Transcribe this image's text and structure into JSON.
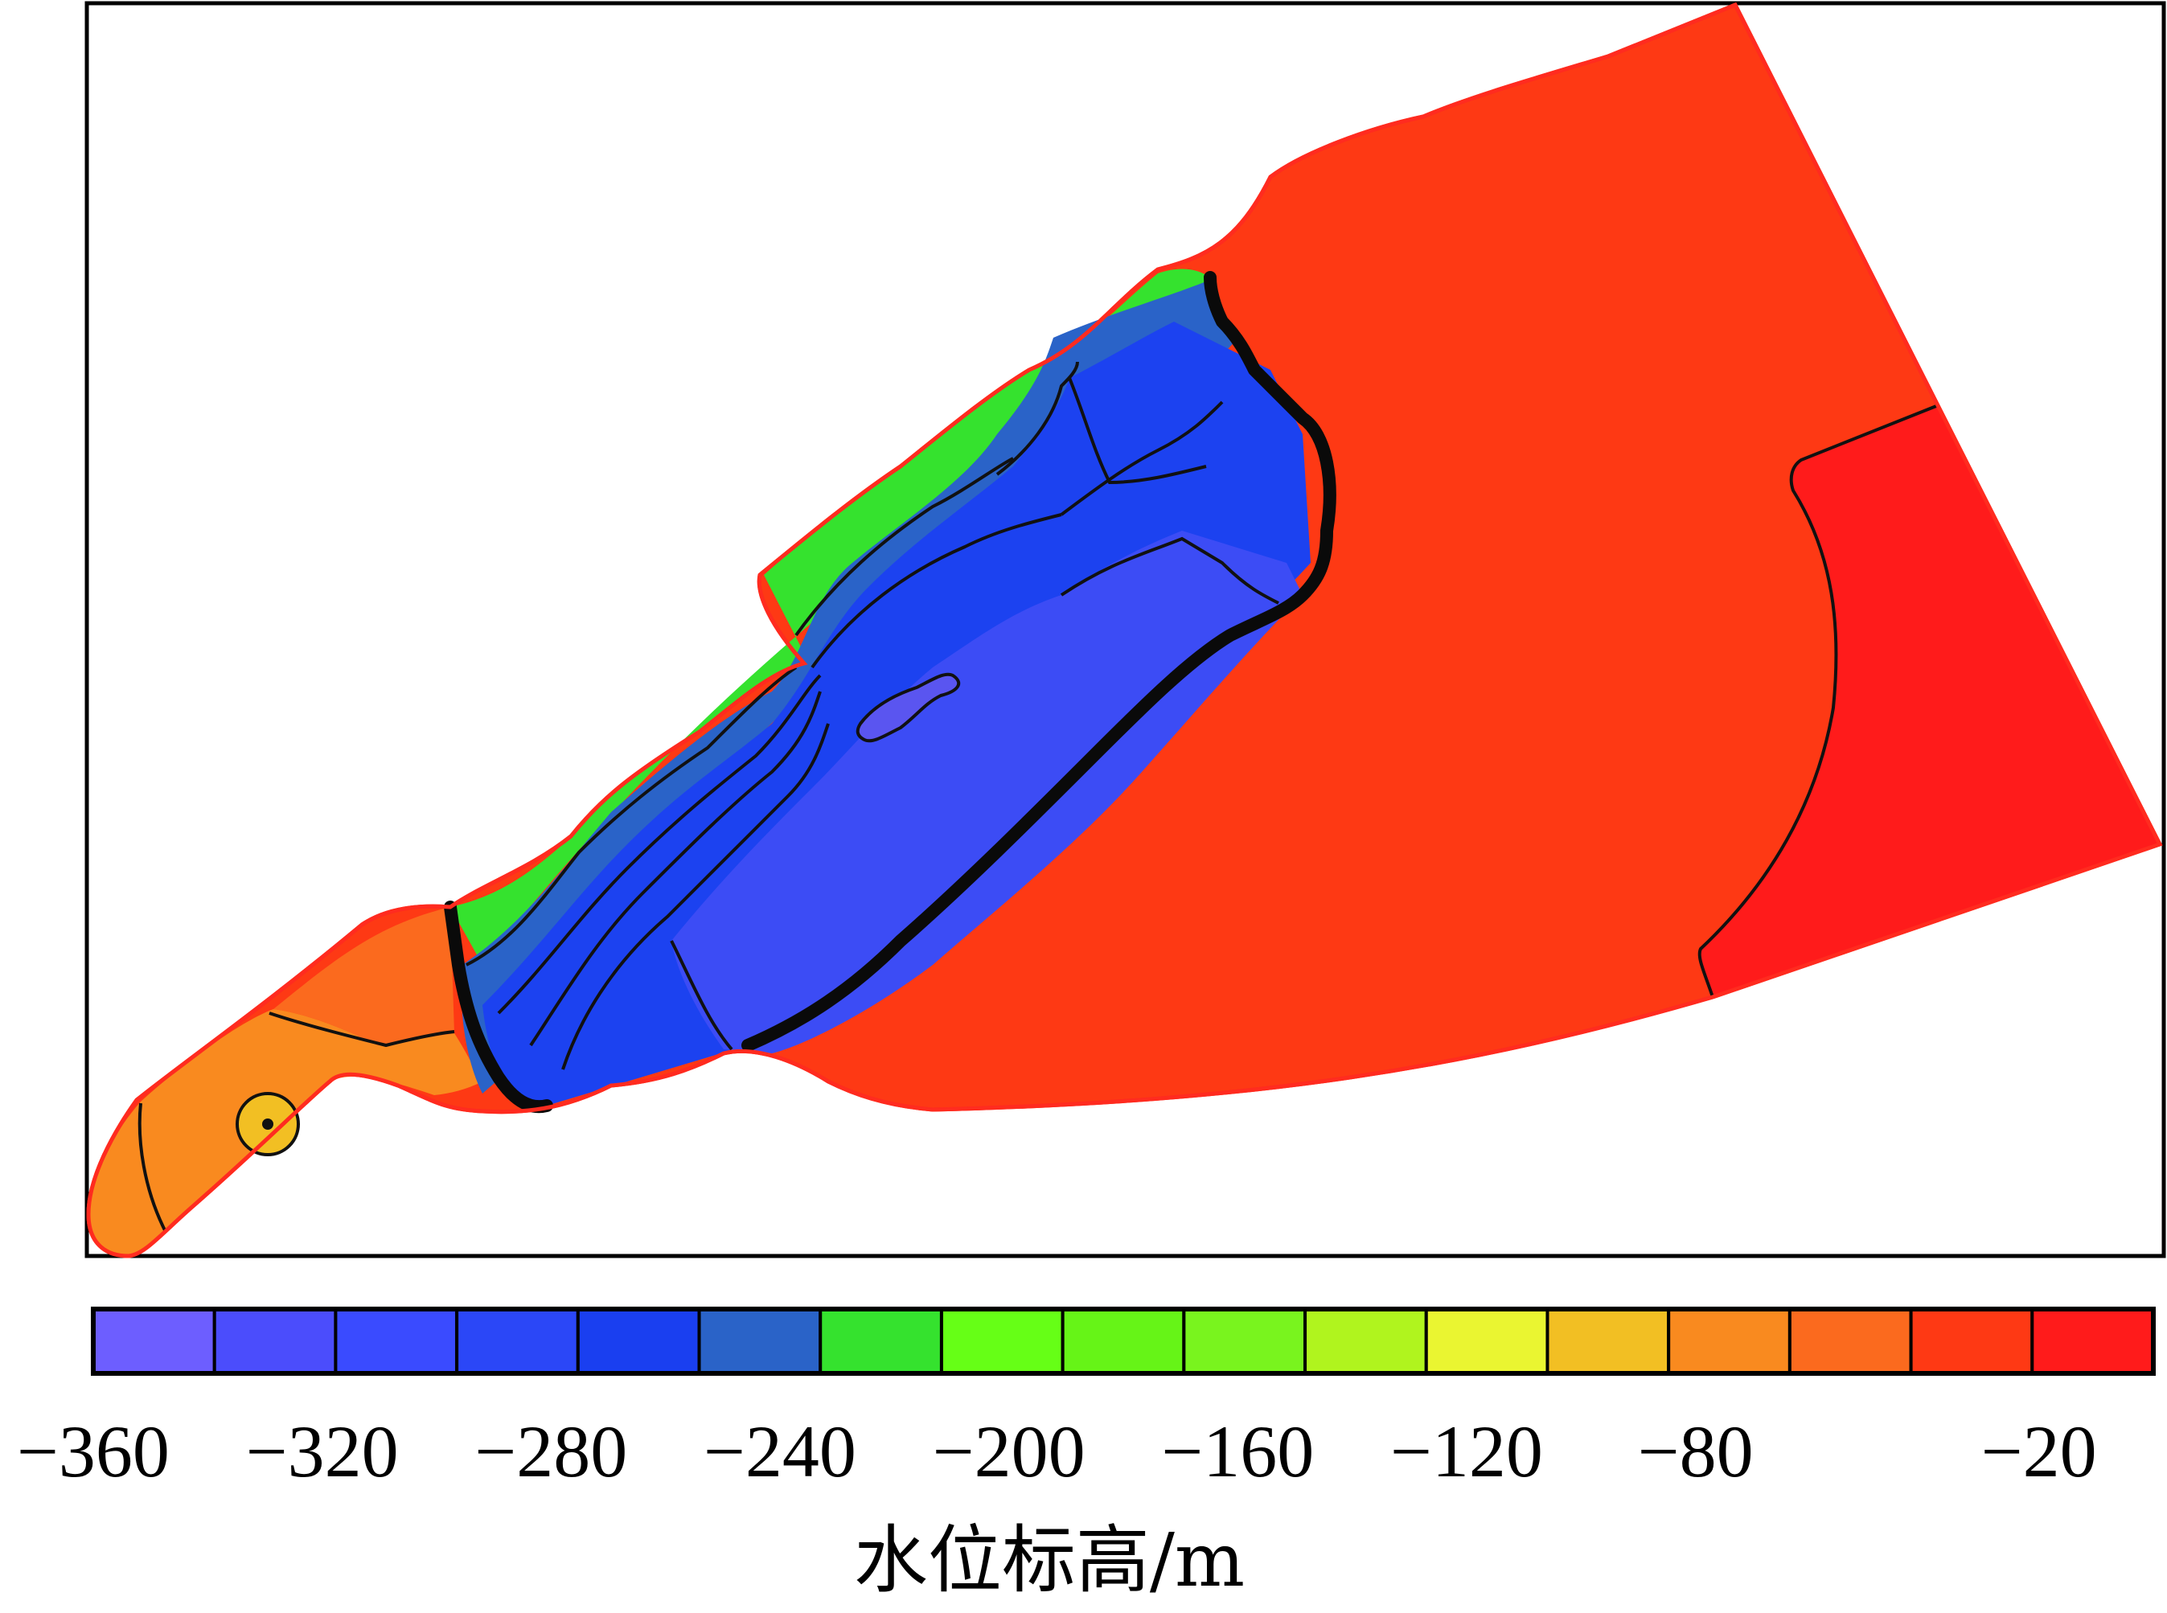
{
  "chart_data": {
    "type": "heatmap",
    "title": "",
    "colorbar": {
      "label": "水位标高/m",
      "min": -360,
      "max": 0,
      "step": 20,
      "tick_labels": [
        "−360",
        "−320",
        "−280",
        "−240",
        "−200",
        "−160",
        "−120",
        "−80",
        "−20"
      ],
      "tick_values": [
        -360,
        -320,
        -280,
        -240,
        -200,
        -160,
        -120,
        -80,
        -20
      ],
      "colors": [
        "#6d5eff",
        "#4b4dfc",
        "#3a4bff",
        "#2b47f7",
        "#1a3ff0",
        "#2a63c8",
        "#35e22e",
        "#66ff16",
        "#66f417",
        "#79f41e",
        "#b0f41e",
        "#eaf531",
        "#f2bf23",
        "#f98a1f",
        "#fb6a1e",
        "#fe3914",
        "#ff1b1b"
      ]
    },
    "zones": [
      {
        "name": "pit-core",
        "level_min": -340,
        "level_max": -320,
        "color": "#3c4cf5"
      },
      {
        "name": "pit-deepest",
        "level_min": -360,
        "level_max": -340,
        "color": "#5a55f0"
      },
      {
        "name": "pit-slope",
        "level_min": -300,
        "level_max": -260,
        "color": "#1c42f0"
      },
      {
        "name": "pit-edge",
        "level_min": -260,
        "level_max": -240,
        "color": "#2a63c8"
      },
      {
        "name": "pit-rim",
        "level_min": -240,
        "level_max": -220,
        "color": "#35e22e"
      },
      {
        "name": "main-field",
        "level_min": -40,
        "level_max": -20,
        "color": "#fe3914"
      },
      {
        "name": "east-field",
        "level_min": -20,
        "level_max": 0,
        "color": "#ff1b1b"
      },
      {
        "name": "west-tail",
        "level_min": -100,
        "level_max": -80,
        "color": "#f98a1f"
      },
      {
        "name": "west-neck",
        "level_min": -80,
        "level_max": -60,
        "color": "#fb6a1e"
      },
      {
        "name": "well-spot",
        "level_min": -120,
        "level_max": -100,
        "color": "#f2bf23"
      }
    ]
  }
}
